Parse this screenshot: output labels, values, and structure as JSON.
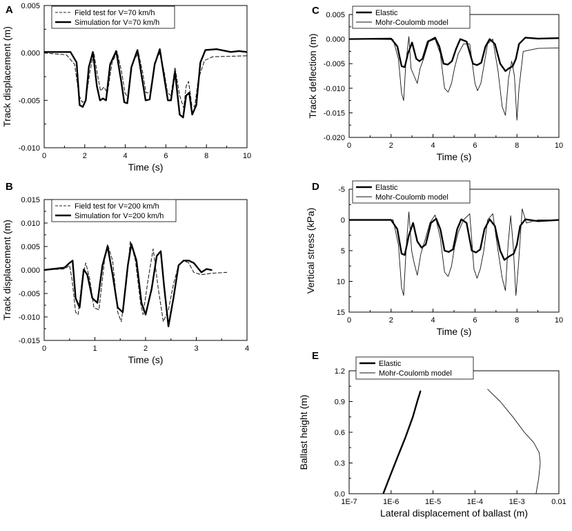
{
  "chart_data": [
    {
      "id": "A",
      "panel_letter": "A",
      "type": "line",
      "xlabel": "Time (s)",
      "ylabel": "Track displacement (m)",
      "xlim": [
        0,
        10
      ],
      "ylim": [
        -0.01,
        0.005
      ],
      "y_reversed": false,
      "xticks": [
        0,
        2,
        4,
        6,
        8,
        10
      ],
      "xtick_labels": [
        "0",
        "2",
        "4",
        "6",
        "8",
        "10"
      ],
      "yticks": [
        -0.01,
        -0.005,
        0.0,
        0.005
      ],
      "ytick_labels": [
        "-0.010",
        "-0.005",
        "0.000",
        "0.005"
      ],
      "legend_position": "top-left",
      "series": [
        {
          "name": "Field test for V=70 km/h",
          "style": "dashed",
          "weight": "normal",
          "x": [
            0,
            1.1,
            1.5,
            1.72,
            1.88,
            2.05,
            2.25,
            2.45,
            2.62,
            2.78,
            2.95,
            3.12,
            3.35,
            3.6,
            3.82,
            3.98,
            4.15,
            4.35,
            4.65,
            4.85,
            5.02,
            5.22,
            5.45,
            5.7,
            5.92,
            6.08,
            6.25,
            6.45,
            6.68,
            6.88,
            7.0,
            7.12,
            7.28,
            7.42,
            7.6,
            7.9,
            8.3,
            10
          ],
          "y": [
            0,
            -0.0002,
            -0.0012,
            -0.0045,
            -0.0052,
            -0.005,
            -0.002,
            0,
            -0.0022,
            -0.004,
            -0.0036,
            -0.0042,
            -0.001,
            0.0001,
            -0.002,
            -0.0042,
            -0.0048,
            -0.001,
            0,
            -0.002,
            -0.0042,
            -0.0042,
            -0.001,
            0,
            -0.002,
            -0.0042,
            -0.0045,
            -0.0015,
            -0.0045,
            -0.0058,
            -0.0035,
            -0.003,
            -0.0055,
            -0.0057,
            -0.0028,
            -0.0008,
            -0.0004,
            -0.0003
          ]
        },
        {
          "name": "Simulation for V=70 km/h",
          "style": "solid",
          "weight": "bold",
          "x": [
            0,
            1.3,
            1.6,
            1.75,
            1.9,
            2.05,
            2.2,
            2.4,
            2.6,
            2.75,
            2.9,
            3.05,
            3.25,
            3.55,
            3.8,
            3.95,
            4.1,
            4.3,
            4.6,
            4.85,
            5.0,
            5.2,
            5.45,
            5.7,
            5.95,
            6.1,
            6.25,
            6.45,
            6.68,
            6.85,
            7.0,
            7.15,
            7.3,
            7.5,
            7.7,
            7.95,
            8.5,
            9.2,
            9.6,
            10
          ],
          "y": [
            0.0001,
            0.0001,
            -0.001,
            -0.0055,
            -0.0057,
            -0.005,
            -0.0015,
            0.0001,
            -0.0035,
            -0.005,
            -0.0048,
            -0.005,
            -0.0012,
            0.0002,
            -0.003,
            -0.0052,
            -0.0053,
            -0.0015,
            0.0003,
            -0.003,
            -0.005,
            -0.0049,
            -0.0012,
            0.0004,
            -0.003,
            -0.005,
            -0.005,
            -0.002,
            -0.0065,
            -0.0068,
            -0.0045,
            -0.0042,
            -0.0065,
            -0.0055,
            -0.001,
            0.0003,
            0.0004,
            0.0001,
            0.0002,
            0.0001
          ]
        }
      ]
    },
    {
      "id": "B",
      "panel_letter": "B",
      "type": "line",
      "xlabel": "Time (s)",
      "ylabel": "Track displacement (m)",
      "xlim": [
        0,
        4
      ],
      "ylim": [
        -0.015,
        0.015
      ],
      "y_reversed": false,
      "xticks": [
        0,
        1,
        2,
        3,
        4
      ],
      "xtick_labels": [
        "0",
        "1",
        "2",
        "3",
        "4"
      ],
      "yticks": [
        -0.015,
        -0.01,
        -0.005,
        0.0,
        0.005,
        0.01,
        0.015
      ],
      "ytick_labels": [
        "-0.015",
        "-0.010",
        "-0.005",
        "0.000",
        "0.005",
        "0.010",
        "0.015"
      ],
      "legend_position": "top-left",
      "series": [
        {
          "name": "Field test for V=200 km/h",
          "style": "dashed",
          "weight": "normal",
          "x": [
            0,
            0.4,
            0.5,
            0.55,
            0.62,
            0.67,
            0.75,
            0.82,
            0.9,
            0.98,
            1.08,
            1.2,
            1.25,
            1.35,
            1.45,
            1.52,
            1.62,
            1.7,
            1.8,
            1.9,
            1.95,
            2.05,
            2.15,
            2.25,
            2.35,
            2.45,
            2.55,
            2.65,
            2.75,
            2.85,
            2.95,
            3.1,
            3.3,
            3.6
          ],
          "y": [
            0,
            0.0002,
            0.001,
            -0.002,
            -0.009,
            -0.0095,
            -0.002,
            0.0015,
            -0.002,
            -0.008,
            -0.0085,
            0.003,
            0.0055,
            0.002,
            -0.009,
            -0.011,
            -0.003,
            0.0062,
            0.002,
            -0.007,
            -0.0095,
            -0.002,
            0.0045,
            -0.004,
            -0.011,
            -0.0085,
            -0.003,
            0.001,
            0.002,
            0.0015,
            -0.0005,
            -0.001,
            -0.0007,
            -0.0005
          ]
        },
        {
          "name": "Simulation for V=200 km/h",
          "style": "solid",
          "weight": "bold",
          "x": [
            0,
            0.4,
            0.5,
            0.56,
            0.62,
            0.7,
            0.78,
            0.85,
            0.95,
            1.05,
            1.15,
            1.25,
            1.35,
            1.45,
            1.55,
            1.65,
            1.72,
            1.82,
            1.92,
            2.0,
            2.12,
            2.22,
            2.3,
            2.36,
            2.45,
            2.55,
            2.65,
            2.75,
            2.85,
            2.95,
            3.1,
            3.2,
            3.3
          ],
          "y": [
            0,
            0.0005,
            0.0015,
            0.002,
            -0.006,
            -0.008,
            0.0001,
            -0.001,
            -0.006,
            -0.007,
            0.001,
            0.005,
            -0.001,
            -0.008,
            -0.009,
            0.001,
            0.0055,
            0.002,
            -0.007,
            -0.0095,
            -0.004,
            0.003,
            0.004,
            -0.003,
            -0.012,
            -0.006,
            0.001,
            0.002,
            0.002,
            0.0015,
            -0.0005,
            0.0002,
            0
          ]
        }
      ]
    },
    {
      "id": "C",
      "panel_letter": "C",
      "type": "line",
      "xlabel": "Time (s)",
      "ylabel": "Track deflection (m)",
      "xlim": [
        0,
        10
      ],
      "ylim": [
        -0.02,
        0.005
      ],
      "y_reversed": false,
      "xticks": [
        0,
        2,
        4,
        6,
        8,
        10
      ],
      "xtick_labels": [
        "0",
        "2",
        "4",
        "6",
        "8",
        "10"
      ],
      "yticks": [
        -0.02,
        -0.015,
        -0.01,
        -0.005,
        0.0,
        0.005
      ],
      "ytick_labels": [
        "-0.020",
        "-0.015",
        "-0.010",
        "-0.005",
        "0.000",
        "0.005"
      ],
      "legend_position": "top-left",
      "series": [
        {
          "name": "Elastic",
          "style": "solid",
          "weight": "bold",
          "x": [
            0,
            2.0,
            2.3,
            2.5,
            2.65,
            2.8,
            3.0,
            3.2,
            3.35,
            3.5,
            3.75,
            4.1,
            4.3,
            4.5,
            4.7,
            4.9,
            5.1,
            5.3,
            5.6,
            5.9,
            6.1,
            6.3,
            6.5,
            6.7,
            6.95,
            7.2,
            7.45,
            7.6,
            7.8,
            7.95,
            8.1,
            8.4,
            9.0,
            10
          ],
          "y": [
            0,
            0.0001,
            -0.0015,
            -0.0055,
            -0.0057,
            -0.003,
            -0.0007,
            -0.004,
            -0.0045,
            -0.004,
            -0.0005,
            0.0003,
            -0.0015,
            -0.005,
            -0.0052,
            -0.0045,
            -0.002,
            0,
            -0.0005,
            -0.005,
            -0.0053,
            -0.0048,
            -0.0015,
            0,
            -0.001,
            -0.005,
            -0.0065,
            -0.006,
            -0.0055,
            -0.004,
            -0.001,
            0.0003,
            0.0001,
            0.0002
          ]
        },
        {
          "name": "Mohr-Coulomb model",
          "style": "solid",
          "weight": "thin",
          "x": [
            0,
            2.1,
            2.35,
            2.5,
            2.6,
            2.7,
            2.85,
            2.95,
            3.1,
            3.25,
            3.38,
            3.55,
            3.8,
            4.1,
            4.35,
            4.55,
            4.72,
            4.88,
            5.02,
            5.2,
            5.45,
            5.75,
            6.0,
            6.12,
            6.28,
            6.4,
            6.6,
            6.85,
            7.1,
            7.3,
            7.45,
            7.6,
            7.75,
            7.88,
            8.0,
            8.1,
            8.3,
            9.0,
            10
          ],
          "y": [
            0,
            -0.0001,
            -0.004,
            -0.011,
            -0.0125,
            -0.005,
            0.0005,
            -0.006,
            -0.0075,
            -0.009,
            -0.006,
            -0.004,
            -0.0005,
            0,
            -0.003,
            -0.01,
            -0.0108,
            -0.009,
            -0.006,
            -0.003,
            -0.001,
            -0.001,
            -0.009,
            -0.0105,
            -0.009,
            -0.006,
            -0.001,
            0,
            -0.0065,
            -0.0138,
            -0.0155,
            -0.008,
            -0.0045,
            -0.0075,
            -0.0165,
            -0.01,
            -0.0025,
            -0.0019,
            -0.0018
          ]
        }
      ]
    },
    {
      "id": "D",
      "panel_letter": "D",
      "type": "line",
      "xlabel": "Time (s)",
      "ylabel": "Vertical stress (kPa)",
      "xlim": [
        0,
        10
      ],
      "ylim": [
        -5,
        15
      ],
      "y_reversed": true,
      "xticks": [
        0,
        2,
        4,
        6,
        8,
        10
      ],
      "xtick_labels": [
        "0",
        "2",
        "4",
        "6",
        "8",
        "10"
      ],
      "yticks": [
        -5,
        0,
        5,
        10,
        15
      ],
      "ytick_labels": [
        "-5",
        "0",
        "5",
        "10",
        "15"
      ],
      "legend_position": "top-left",
      "series": [
        {
          "name": "Elastic",
          "style": "solid",
          "weight": "bold",
          "x": [
            0,
            2.0,
            2.3,
            2.5,
            2.65,
            2.85,
            3.05,
            3.25,
            3.45,
            3.65,
            3.9,
            4.15,
            4.35,
            4.55,
            4.75,
            4.95,
            5.15,
            5.35,
            5.6,
            5.85,
            6.05,
            6.25,
            6.45,
            6.7,
            6.95,
            7.2,
            7.4,
            7.6,
            7.85,
            8.0,
            8.15,
            8.4,
            9.0,
            10
          ],
          "y": [
            0,
            0,
            1.5,
            5.5,
            5.7,
            2.5,
            0.5,
            3.5,
            4.5,
            4.0,
            0.5,
            -0.2,
            1.5,
            5.0,
            5.2,
            4.8,
            1.5,
            -0.1,
            0.5,
            5.0,
            5.3,
            4.8,
            1.5,
            -0.1,
            1.0,
            5.0,
            6.5,
            6.0,
            5.5,
            4.0,
            1.0,
            -0.1,
            0.2,
            0
          ]
        },
        {
          "name": "Mohr-Coulomb model",
          "style": "solid",
          "weight": "thin",
          "x": [
            0,
            2.1,
            2.35,
            2.5,
            2.6,
            2.72,
            2.85,
            2.98,
            3.1,
            3.25,
            3.42,
            3.6,
            3.85,
            4.1,
            4.35,
            4.55,
            4.72,
            4.88,
            5.02,
            5.2,
            5.45,
            5.75,
            5.95,
            6.1,
            6.25,
            6.42,
            6.6,
            6.85,
            7.1,
            7.3,
            7.45,
            7.58,
            7.7,
            7.82,
            7.95,
            8.08,
            8.25,
            8.45,
            9.0,
            10
          ],
          "y": [
            0,
            0,
            4.0,
            11.0,
            12.3,
            4.5,
            -1.3,
            5.0,
            7.0,
            9.0,
            5.5,
            3.5,
            0.5,
            -0.8,
            3.0,
            8.5,
            9.2,
            7.5,
            4.5,
            2.0,
            0,
            -1.0,
            8.0,
            9.5,
            8.0,
            5.0,
            0,
            -1.0,
            5.0,
            9.5,
            11.5,
            4.0,
            -0.7,
            4.0,
            12.3,
            7.0,
            -1.8,
            0.5,
            0,
            0
          ]
        }
      ]
    },
    {
      "id": "E",
      "panel_letter": "E",
      "type": "line",
      "xlabel": "Lateral displacement of ballast (m)",
      "ylabel": "Ballast height (m)",
      "x_scale": "log",
      "xlim": [
        1e-07,
        0.01
      ],
      "ylim": [
        0,
        1.2
      ],
      "y_reversed": false,
      "xticks": [
        1e-07,
        1e-06,
        1e-05,
        0.0001,
        0.001,
        0.01
      ],
      "xtick_labels": [
        "1E-7",
        "1E-6",
        "1E-5",
        "1E-4",
        "1E-3",
        "0.01"
      ],
      "yticks": [
        0.0,
        0.3,
        0.6,
        0.9,
        1.2
      ],
      "ytick_labels": [
        "0.0",
        "0.3",
        "0.6",
        "0.9",
        "1.2"
      ],
      "legend_position": "top-right",
      "series": [
        {
          "name": "Elastic",
          "style": "solid",
          "weight": "bold",
          "x": [
            6.5e-07,
            9e-07,
            1.4e-06,
            2.2e-06,
            3.3e-06,
            4.2e-06,
            5e-06
          ],
          "y": [
            0.0,
            0.15,
            0.35,
            0.55,
            0.75,
            0.9,
            1.0
          ]
        },
        {
          "name": "Mohr-Coulomb model",
          "style": "solid",
          "weight": "thin",
          "x": [
            0.00285,
            0.0033,
            0.0036,
            0.0034,
            0.0025,
            0.0015,
            0.0008,
            0.0004,
            0.0002
          ],
          "y": [
            0.0,
            0.15,
            0.3,
            0.4,
            0.5,
            0.6,
            0.75,
            0.9,
            1.02
          ]
        }
      ]
    }
  ]
}
